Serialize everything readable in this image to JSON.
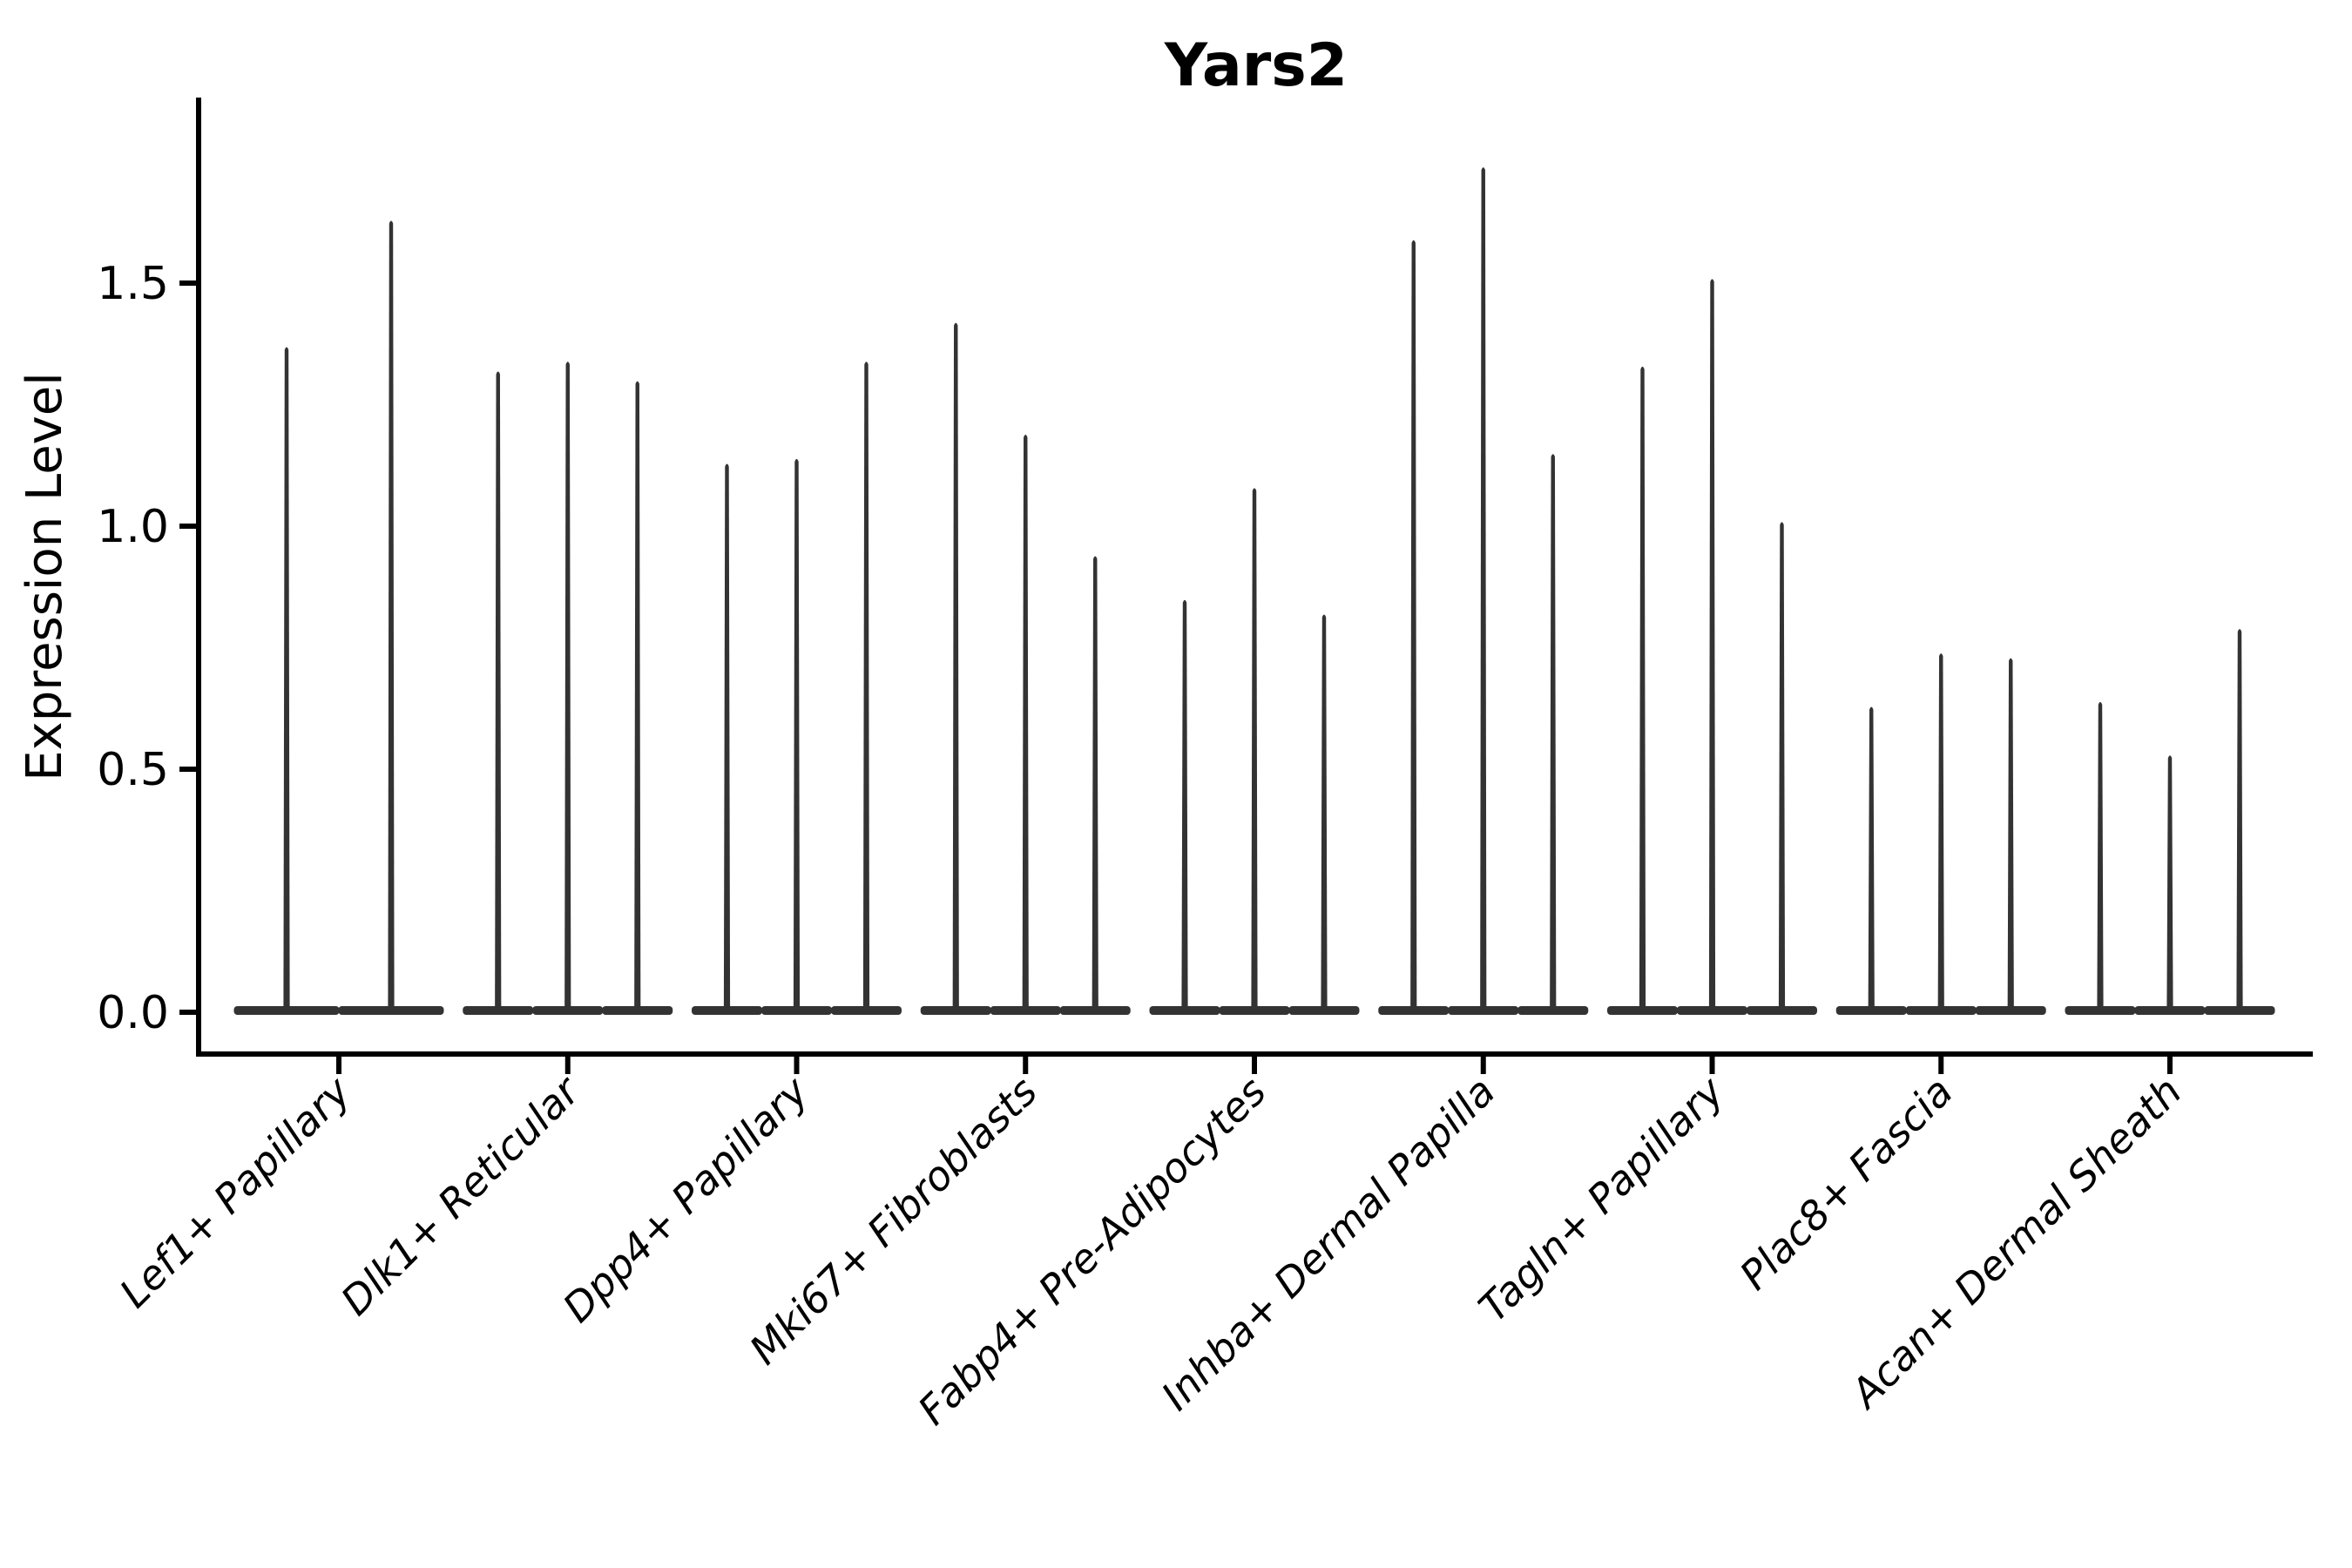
{
  "chart_data": {
    "type": "violin",
    "title": "Yars2",
    "ylabel": "Expression Level",
    "xlabel": "",
    "grid": false,
    "legend": "none",
    "background": "#ffffff",
    "ylim": [
      0,
      1.88
    ],
    "yticks": [
      {
        "value": 0.0,
        "label": "0.0"
      },
      {
        "value": 0.5,
        "label": "0.5"
      },
      {
        "value": 1.0,
        "label": "1.0"
      },
      {
        "value": 1.5,
        "label": "1.5"
      }
    ],
    "categories": [
      "Lef1+ Papillary",
      "Dlk1+ Reticular",
      "Dpp4+ Papillary",
      "Mki67+ Fibroblasts",
      "Fabp4+ Pre-Adipocytes",
      "Inhba+ Dermal Papilla",
      "Tagln+ Papillary",
      "Plac8+ Fascia",
      "Acan+ Dermal Sheath"
    ],
    "groups": [
      {
        "label": "Lef1+ Papillary",
        "violin_maxima": [
          1.37,
          1.63
        ]
      },
      {
        "label": "Dlk1+ Reticular",
        "violin_maxima": [
          1.32,
          1.34,
          1.3
        ]
      },
      {
        "label": "Dpp4+ Papillary",
        "violin_maxima": [
          1.13,
          1.14,
          1.34
        ]
      },
      {
        "label": "Mki67+ Fibroblasts",
        "violin_maxima": [
          1.42,
          1.19,
          0.94
        ]
      },
      {
        "label": "Fabp4+ Pre-Adipocytes",
        "violin_maxima": [
          0.85,
          1.08,
          0.82
        ]
      },
      {
        "label": "Inhba+ Dermal Papilla",
        "violin_maxima": [
          1.59,
          1.74,
          1.15
        ]
      },
      {
        "label": "Tagln+ Papillary",
        "violin_maxima": [
          1.33,
          1.51,
          1.01
        ]
      },
      {
        "label": "Plac8+ Fascia",
        "violin_maxima": [
          0.63,
          0.74,
          0.73
        ]
      },
      {
        "label": "Acan+ Dermal Sheath",
        "violin_maxima": [
          0.64,
          0.53,
          0.79
        ]
      }
    ],
    "violins_shape_note": "zero-inflated: wide flat base at 0 with thin spike to maximum",
    "colors": {
      "violin_fill": "#333333",
      "violin_edge": "#1f1f1f",
      "axis": "#000000",
      "text": "#000000"
    }
  }
}
